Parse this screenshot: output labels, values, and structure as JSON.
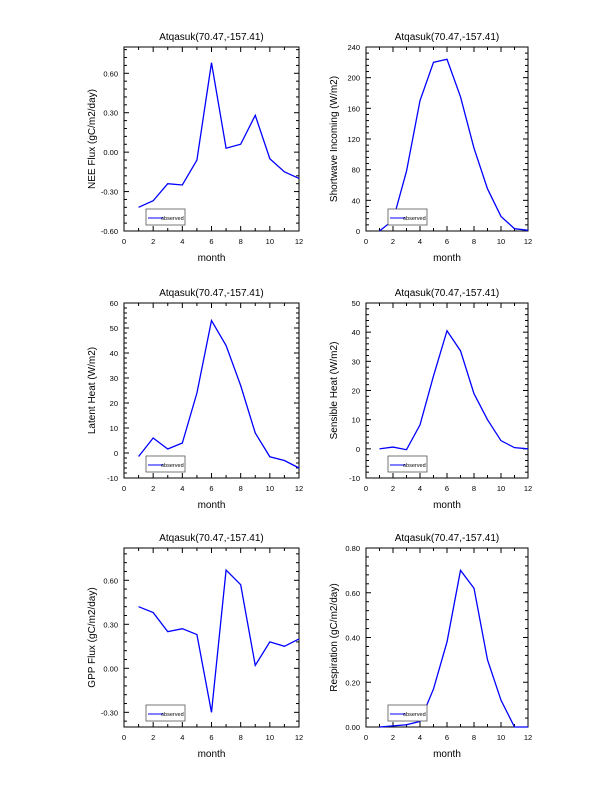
{
  "chart_data": [
    {
      "type": "line",
      "title": "Atqasuk(70.47,-157.41)",
      "xlabel": "month",
      "ylabel": "NEE Flux (gC/m2/day)",
      "xlim": [
        0,
        12
      ],
      "ylim": [
        -0.6,
        0.8
      ],
      "xticks": [
        "0",
        "2",
        "4",
        "6",
        "8",
        "10",
        "12"
      ],
      "yticks": [
        -0.6,
        -0.3,
        0,
        0.3,
        0.6
      ],
      "ytick_labels": [
        "-0.60",
        "-0.30",
        "0.00",
        "0.30",
        "0.60"
      ],
      "legend": "observed",
      "x": [
        1,
        2,
        3,
        4,
        5,
        6,
        7,
        8,
        9,
        10,
        11,
        12
      ],
      "series": [
        {
          "name": "observed",
          "values": [
            -0.42,
            -0.37,
            -0.24,
            -0.25,
            -0.06,
            0.68,
            0.03,
            0.06,
            0.28,
            -0.05,
            -0.15,
            -0.2
          ]
        }
      ]
    },
    {
      "type": "line",
      "title": "Atqasuk(70.47,-157.41)",
      "xlabel": "month",
      "ylabel": "Shortwave Incoming (W/m2)",
      "xlim": [
        0,
        12
      ],
      "ylim": [
        0,
        240
      ],
      "xticks": [
        "0",
        "2",
        "4",
        "6",
        "8",
        "10",
        "12"
      ],
      "yticks": [
        0,
        40,
        80,
        120,
        160,
        200,
        240
      ],
      "ytick_labels": [
        "0",
        "40",
        "80",
        "120",
        "160",
        "200",
        "240"
      ],
      "legend": "observed",
      "x": [
        1,
        2,
        3,
        4,
        5,
        6,
        7,
        8,
        9,
        10,
        11,
        12
      ],
      "series": [
        {
          "name": "observed",
          "values": [
            0,
            14,
            78,
            170,
            220,
            224,
            175,
            108,
            55,
            19,
            3,
            1
          ]
        }
      ]
    },
    {
      "type": "line",
      "title": "Atqasuk(70.47,-157.41)",
      "xlabel": "month",
      "ylabel": "Latent Heat (W/m2)",
      "xlim": [
        0,
        12
      ],
      "ylim": [
        -10,
        60
      ],
      "xticks": [
        "0",
        "2",
        "4",
        "6",
        "8",
        "10",
        "12"
      ],
      "yticks": [
        -10,
        0,
        10,
        20,
        30,
        40,
        50,
        60
      ],
      "ytick_labels": [
        "-10",
        "0",
        "10",
        "20",
        "30",
        "40",
        "50",
        "60"
      ],
      "legend": "observed",
      "x": [
        1,
        2,
        3,
        4,
        5,
        6,
        7,
        8,
        9,
        10,
        11,
        12
      ],
      "series": [
        {
          "name": "observed",
          "values": [
            -1.4,
            6,
            1.6,
            4,
            24,
            53,
            43,
            27,
            8,
            -1.5,
            -3,
            -6
          ]
        }
      ]
    },
    {
      "type": "line",
      "title": "Atqasuk(70.47,-157.41)",
      "xlabel": "month",
      "ylabel": "Sensible Heat (W/m2)",
      "xlim": [
        0,
        12
      ],
      "ylim": [
        -10,
        50
      ],
      "xticks": [
        "0",
        "2",
        "4",
        "6",
        "8",
        "10",
        "12"
      ],
      "yticks": [
        -10,
        0,
        10,
        20,
        30,
        40,
        50
      ],
      "ytick_labels": [
        "-10",
        "0",
        "10",
        "20",
        "30",
        "40",
        "50"
      ],
      "legend": "observed",
      "x": [
        1,
        2,
        3,
        4,
        5,
        6,
        7,
        8,
        9,
        10,
        11,
        12
      ],
      "series": [
        {
          "name": "observed",
          "values": [
            0,
            0.6,
            -0.3,
            8.2,
            25,
            40.5,
            33.6,
            18.9,
            10,
            2.8,
            0.4,
            0
          ]
        }
      ]
    },
    {
      "type": "line",
      "title": "Atqasuk(70.47,-157.41)",
      "xlabel": "month",
      "ylabel": "GPP Flux (gC/m2/day)",
      "xlim": [
        0,
        12
      ],
      "ylim": [
        -0.4,
        0.82
      ],
      "xticks": [
        "0",
        "2",
        "4",
        "6",
        "8",
        "10",
        "12"
      ],
      "yticks": [
        -0.3,
        0,
        0.3,
        0.6
      ],
      "ytick_labels": [
        "-0.30",
        "0.00",
        "0.30",
        "0.60"
      ],
      "legend": "observed",
      "x": [
        1,
        2,
        3,
        4,
        5,
        6,
        7,
        8,
        9,
        10,
        11,
        12
      ],
      "series": [
        {
          "name": "observed",
          "values": [
            0.42,
            0.38,
            0.25,
            0.27,
            0.23,
            -0.3,
            0.67,
            0.57,
            0.02,
            0.18,
            0.15,
            0.2
          ]
        }
      ]
    },
    {
      "type": "line",
      "title": "Atqasuk(70.47,-157.41)",
      "xlabel": "month",
      "ylabel": "Respiration (gC/m2/day)",
      "xlim": [
        0,
        12
      ],
      "ylim": [
        0,
        0.8
      ],
      "xticks": [
        "0",
        "2",
        "4",
        "6",
        "8",
        "10",
        "12"
      ],
      "yticks": [
        0,
        0.2,
        0.4,
        0.6,
        0.8
      ],
      "ytick_labels": [
        "0.00",
        "0.20",
        "0.40",
        "0.60",
        "0.80"
      ],
      "legend": "observed",
      "x": [
        1,
        2,
        3,
        4,
        5,
        6,
        7,
        8,
        9,
        10,
        11,
        12
      ],
      "series": [
        {
          "name": "observed",
          "values": [
            0,
            0.005,
            0.01,
            0.025,
            0.17,
            0.38,
            0.7,
            0.62,
            0.3,
            0.12,
            0,
            0
          ]
        }
      ]
    }
  ],
  "colors": {
    "line": "#0000ff"
  }
}
